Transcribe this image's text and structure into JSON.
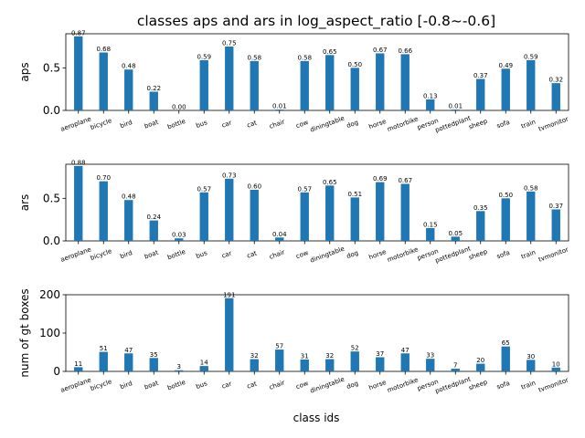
{
  "chart_data": {
    "type": "bar",
    "title": "classes aps and ars in log_aspect_ratio [-0.8~-0.6]",
    "xlabel": "class ids",
    "categories": [
      "aeroplane",
      "bicycle",
      "bird",
      "boat",
      "bottle",
      "bus",
      "car",
      "cat",
      "chair",
      "cow",
      "diningtable",
      "dog",
      "horse",
      "motorbike",
      "person",
      "pottedplant",
      "sheep",
      "sofa",
      "train",
      "tvmonitor"
    ],
    "subplots": [
      {
        "ylabel": "aps",
        "ylim": [
          0,
          0.9
        ],
        "yticks": [
          "0.0",
          "0.5"
        ],
        "ytick_values": [
          0,
          0.5
        ],
        "values": [
          0.87,
          0.68,
          0.48,
          0.22,
          0.0,
          0.59,
          0.75,
          0.58,
          0.01,
          0.58,
          0.65,
          0.5,
          0.67,
          0.66,
          0.13,
          0.01,
          0.37,
          0.49,
          0.59,
          0.32
        ],
        "labels": [
          "0.87",
          "0.68",
          "0.48",
          "0.22",
          "0.00",
          "0.59",
          "0.75",
          "0.58",
          "0.01",
          "0.58",
          "0.65",
          "0.50",
          "0.67",
          "0.66",
          "0.13",
          "0.01",
          "0.37",
          "0.49",
          "0.59",
          "0.32"
        ]
      },
      {
        "ylabel": "ars",
        "ylim": [
          0,
          0.9
        ],
        "yticks": [
          "0.0",
          "0.5"
        ],
        "ytick_values": [
          0,
          0.5
        ],
        "values": [
          0.88,
          0.7,
          0.48,
          0.24,
          0.03,
          0.57,
          0.73,
          0.6,
          0.04,
          0.57,
          0.65,
          0.51,
          0.69,
          0.67,
          0.15,
          0.05,
          0.35,
          0.5,
          0.58,
          0.37
        ],
        "labels": [
          "0.88",
          "0.70",
          "0.48",
          "0.24",
          "0.03",
          "0.57",
          "0.73",
          "0.60",
          "0.04",
          "0.57",
          "0.65",
          "0.51",
          "0.69",
          "0.67",
          "0.15",
          "0.05",
          "0.35",
          "0.50",
          "0.58",
          "0.37"
        ]
      },
      {
        "ylabel": "num of gt boxes",
        "ylim": [
          0,
          200
        ],
        "yticks": [
          "0",
          "100",
          "200"
        ],
        "ytick_values": [
          0,
          100,
          200
        ],
        "values": [
          11,
          51,
          47,
          35,
          3,
          14,
          191,
          32,
          57,
          31,
          32,
          52,
          37,
          47,
          33,
          7,
          20,
          65,
          30,
          10
        ],
        "labels": [
          "11",
          "51",
          "47",
          "35",
          "3",
          "14",
          "191",
          "32",
          "57",
          "31",
          "32",
          "52",
          "37",
          "47",
          "33",
          "7",
          "20",
          "65",
          "30",
          "10"
        ]
      }
    ],
    "bar_color": "#1f77b4",
    "grid": false,
    "legend": "none"
  }
}
